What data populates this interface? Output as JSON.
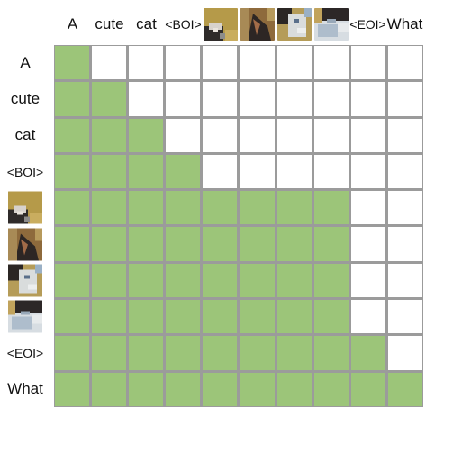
{
  "tokens": [
    {
      "kind": "text",
      "label": "A"
    },
    {
      "kind": "text",
      "label": "cute"
    },
    {
      "kind": "text",
      "label": "cat"
    },
    {
      "kind": "text",
      "label": "<BOI>"
    },
    {
      "kind": "image",
      "icon": "cat-image-patch-1-icon"
    },
    {
      "kind": "image",
      "icon": "cat-image-patch-2-icon"
    },
    {
      "kind": "image",
      "icon": "cat-image-patch-3-icon"
    },
    {
      "kind": "image",
      "icon": "cat-image-patch-4-icon"
    },
    {
      "kind": "text",
      "label": "<EOI>"
    },
    {
      "kind": "text",
      "label": "What"
    }
  ],
  "mask": [
    [
      1,
      0,
      0,
      0,
      0,
      0,
      0,
      0,
      0,
      0
    ],
    [
      1,
      1,
      0,
      0,
      0,
      0,
      0,
      0,
      0,
      0
    ],
    [
      1,
      1,
      1,
      0,
      0,
      0,
      0,
      0,
      0,
      0
    ],
    [
      1,
      1,
      1,
      1,
      0,
      0,
      0,
      0,
      0,
      0
    ],
    [
      1,
      1,
      1,
      1,
      1,
      1,
      1,
      1,
      0,
      0
    ],
    [
      1,
      1,
      1,
      1,
      1,
      1,
      1,
      1,
      0,
      0
    ],
    [
      1,
      1,
      1,
      1,
      1,
      1,
      1,
      1,
      0,
      0
    ],
    [
      1,
      1,
      1,
      1,
      1,
      1,
      1,
      1,
      0,
      0
    ],
    [
      1,
      1,
      1,
      1,
      1,
      1,
      1,
      1,
      1,
      0
    ],
    [
      1,
      1,
      1,
      1,
      1,
      1,
      1,
      1,
      1,
      1
    ]
  ],
  "colors": {
    "attend": "#9cc579",
    "masked": "#ffffff",
    "grid_line": "#9b9b9b"
  }
}
